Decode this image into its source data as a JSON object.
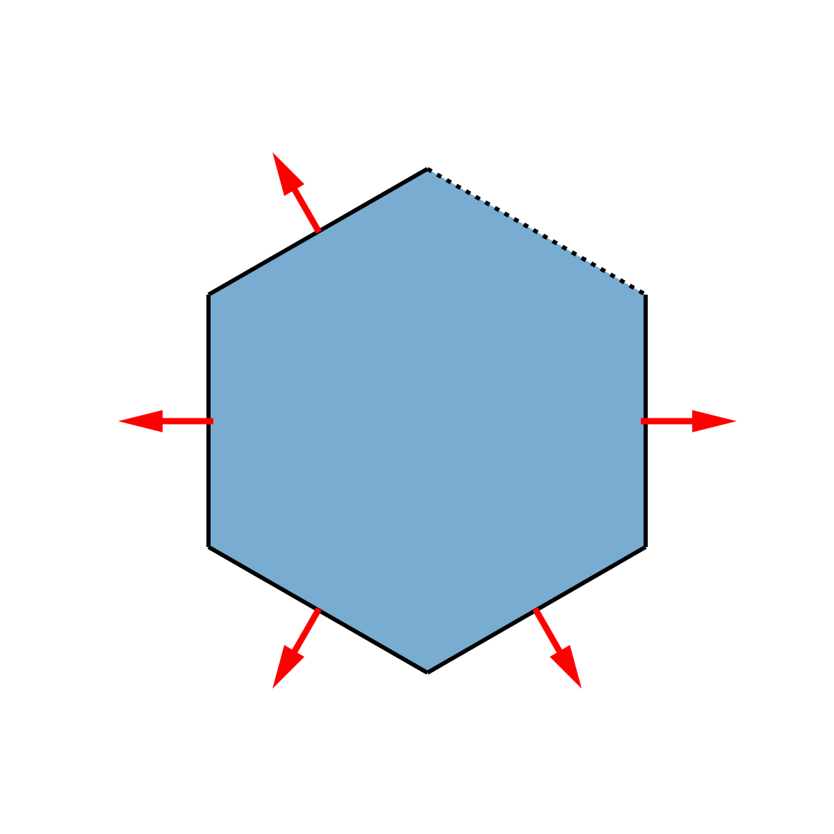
{
  "colors": {
    "background": "#ffffff",
    "hexagon_fill": "#78acd1",
    "hexagon_stroke": "#000000",
    "arrow": "#ff0000"
  },
  "hexagon": {
    "sides": 6,
    "edge_styles": [
      "dotted",
      "solid",
      "solid",
      "solid",
      "solid",
      "solid"
    ]
  },
  "arrows": {
    "count": 5,
    "direction": "outward-normal",
    "edges": [
      "upper-left",
      "left",
      "lower-left",
      "lower-right",
      "right"
    ]
  }
}
